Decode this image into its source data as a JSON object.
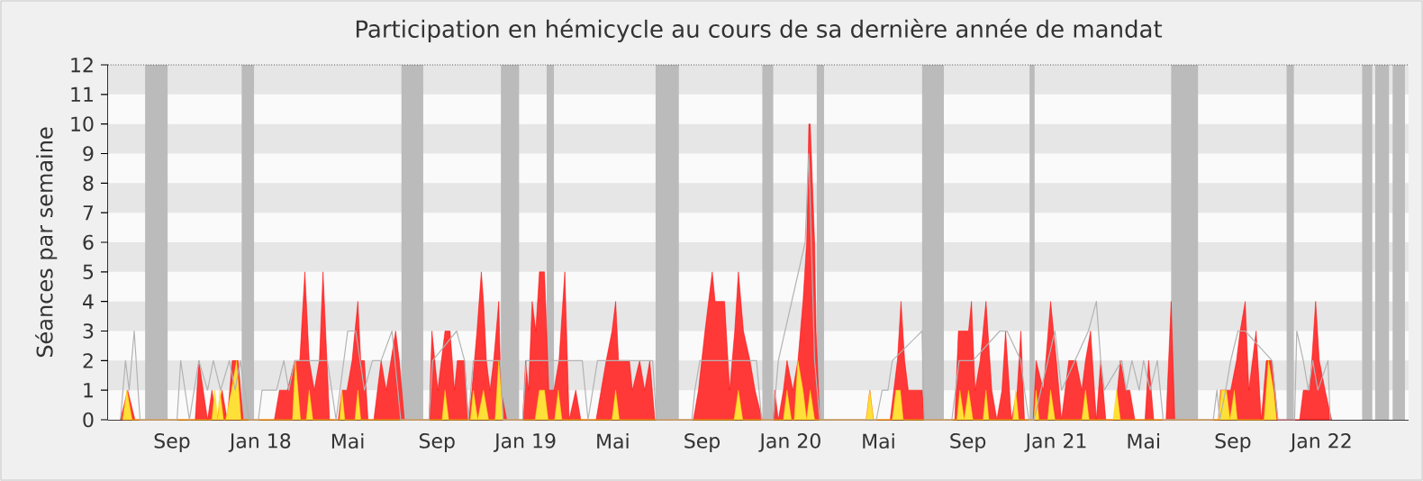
{
  "chart_data": {
    "type": "area",
    "title": "Participation en hémicycle au cours de sa dernière année de mandat",
    "ylabel": "Séances par semaine",
    "xlim": [
      "2017-06-05",
      "2022-05-01"
    ],
    "xticks": [
      {
        "value": "2017-09-01",
        "label": "Sep"
      },
      {
        "value": "2018-01-01",
        "label": "Jan 18"
      },
      {
        "value": "2018-05-01",
        "label": "Mai"
      },
      {
        "value": "2018-09-01",
        "label": "Sep"
      },
      {
        "value": "2019-01-01",
        "label": "Jan 19"
      },
      {
        "value": "2019-05-01",
        "label": "Mai"
      },
      {
        "value": "2019-09-01",
        "label": "Sep"
      },
      {
        "value": "2020-01-01",
        "label": "Jan 20"
      },
      {
        "value": "2020-05-01",
        "label": "Mai"
      },
      {
        "value": "2020-09-01",
        "label": "Sep"
      },
      {
        "value": "2021-01-01",
        "label": "Jan 21"
      },
      {
        "value": "2021-05-01",
        "label": "Mai"
      },
      {
        "value": "2021-09-01",
        "label": "Sep"
      },
      {
        "value": "2022-01-01",
        "label": "Jan 22"
      }
    ],
    "ylim": [
      0,
      12
    ],
    "yticks": [
      0,
      1,
      2,
      3,
      4,
      5,
      6,
      7,
      8,
      9,
      10,
      11,
      12
    ],
    "bands": [
      {
        "axis": "y",
        "from": 1,
        "to": 2,
        "color": "#e6e6e6"
      },
      {
        "axis": "y",
        "from": 3,
        "to": 4,
        "color": "#e6e6e6"
      },
      {
        "axis": "y",
        "from": 5,
        "to": 6,
        "color": "#e6e6e6"
      },
      {
        "axis": "y",
        "from": 7,
        "to": 8,
        "color": "#e6e6e6"
      },
      {
        "axis": "y",
        "from": 9,
        "to": 10,
        "color": "#e6e6e6"
      },
      {
        "axis": "y",
        "from": 11,
        "to": 12,
        "color": "#e6e6e6"
      },
      {
        "axis": "x",
        "from": "2017-07-26",
        "to": "2017-08-26",
        "color": "#bbbbbb"
      },
      {
        "axis": "x",
        "from": "2017-12-06",
        "to": "2017-12-23",
        "color": "#bbbbbb"
      },
      {
        "axis": "x",
        "from": "2018-07-14",
        "to": "2018-08-13",
        "color": "#bbbbbb"
      },
      {
        "axis": "x",
        "from": "2018-11-28",
        "to": "2018-12-23",
        "color": "#bbbbbb"
      },
      {
        "axis": "x",
        "from": "2019-01-30",
        "to": "2019-02-09",
        "color": "#bbbbbb"
      },
      {
        "axis": "x",
        "from": "2019-06-29",
        "to": "2019-07-31",
        "color": "#bbbbbb"
      },
      {
        "axis": "x",
        "from": "2019-11-23",
        "to": "2019-12-08",
        "color": "#bbbbbb"
      },
      {
        "axis": "x",
        "from": "2020-02-06",
        "to": "2020-02-16",
        "color": "#bbbbbb"
      },
      {
        "axis": "x",
        "from": "2020-06-30",
        "to": "2020-07-30",
        "color": "#bbbbbb"
      },
      {
        "axis": "x",
        "from": "2020-11-25",
        "to": "2020-12-02",
        "color": "#bbbbbb"
      },
      {
        "axis": "x",
        "from": "2021-06-08",
        "to": "2021-07-15",
        "color": "#bbbbbb"
      },
      {
        "axis": "x",
        "from": "2021-11-14",
        "to": "2021-11-24",
        "color": "#bbbbbb"
      },
      {
        "axis": "x",
        "from": "2022-02-26",
        "to": "2022-03-12",
        "color": "#bbbbbb"
      },
      {
        "axis": "x",
        "from": "2022-03-16",
        "to": "2022-04-04",
        "color": "#bbbbbb"
      },
      {
        "axis": "x",
        "from": "2022-04-09",
        "to": "2022-04-26",
        "color": "#bbbbbb"
      }
    ],
    "series": [
      {
        "color": "#ff0000",
        "x": [
          "2017-06-22",
          "2017-07-02",
          "2017-07-12",
          "2017-10-03",
          "2017-10-08",
          "2017-10-20",
          "2017-10-26",
          "2017-11-02",
          "2017-11-09",
          "2017-11-16",
          "2017-11-23",
          "2017-12-01",
          "2017-12-08",
          "2018-01-20",
          "2018-01-27",
          "2018-02-07",
          "2018-02-17",
          "2018-02-24",
          "2018-03-03",
          "2018-03-09",
          "2018-03-16",
          "2018-03-23",
          "2018-03-28",
          "2018-04-06",
          "2018-04-18",
          "2018-04-23",
          "2018-04-30",
          "2018-05-07",
          "2018-05-15",
          "2018-05-19",
          "2018-05-24",
          "2018-05-29",
          "2018-06-06",
          "2018-06-16",
          "2018-06-23",
          "2018-07-06",
          "2018-07-11",
          "2018-07-18",
          "2018-08-21",
          "2018-08-25",
          "2018-09-02",
          "2018-09-12",
          "2018-09-19",
          "2018-09-25",
          "2018-09-29",
          "2018-10-09",
          "2018-10-14",
          "2018-10-19",
          "2018-10-26",
          "2018-11-01",
          "2018-11-04",
          "2018-11-08",
          "2018-11-13",
          "2018-11-18",
          "2018-11-25",
          "2018-11-28",
          "2018-12-06",
          "2018-12-28",
          "2019-01-01",
          "2019-01-05",
          "2019-01-10",
          "2019-01-15",
          "2019-01-20",
          "2019-01-27",
          "2019-02-02",
          "2019-02-09",
          "2019-02-16",
          "2019-02-24",
          "2019-03-02",
          "2019-03-11",
          "2019-03-18",
          "2019-04-08",
          "2019-04-15",
          "2019-04-22",
          "2019-04-30",
          "2019-05-05",
          "2019-05-09",
          "2019-05-24",
          "2019-05-28",
          "2019-06-07",
          "2019-06-14",
          "2019-06-21",
          "2019-06-28",
          "2019-08-20",
          "2019-08-27",
          "2019-09-05",
          "2019-09-15",
          "2019-09-19",
          "2019-10-02",
          "2019-10-09",
          "2019-10-16",
          "2019-10-21",
          "2019-10-28",
          "2019-11-06",
          "2019-11-13",
          "2019-11-23",
          "2019-12-08",
          "2019-12-10",
          "2019-12-15",
          "2019-12-22",
          "2019-12-27",
          "2020-01-04",
          "2020-01-11",
          "2020-01-18",
          "2020-01-23",
          "2020-01-26",
          "2020-01-28",
          "2020-02-03",
          "2020-02-05",
          "2020-02-10",
          "2020-04-14",
          "2020-04-19",
          "2020-04-24",
          "2020-05-17",
          "2020-05-22",
          "2020-05-27",
          "2020-06-01",
          "2020-06-06",
          "2020-06-11",
          "2020-06-30",
          "2020-07-03",
          "2020-08-14",
          "2020-08-19",
          "2020-09-02",
          "2020-09-06",
          "2020-09-11",
          "2020-09-18",
          "2020-09-26",
          "2020-10-04",
          "2020-10-11",
          "2020-10-18",
          "2020-10-23",
          "2020-10-31",
          "2020-11-08",
          "2020-11-13",
          "2020-11-18",
          "2020-11-30",
          "2020-12-04",
          "2020-12-14",
          "2020-12-24",
          "2021-01-01",
          "2021-01-08",
          "2021-01-18",
          "2021-01-28",
          "2021-02-05",
          "2021-02-10",
          "2021-02-17",
          "2021-02-25",
          "2021-03-03",
          "2021-03-10",
          "2021-03-22",
          "2021-03-30",
          "2021-04-07",
          "2021-04-12",
          "2021-04-19",
          "2021-05-03",
          "2021-05-08",
          "2021-05-15",
          "2021-06-01",
          "2021-06-08",
          "2021-06-13",
          "2021-08-12",
          "2021-08-15",
          "2021-08-29",
          "2021-09-06",
          "2021-09-11",
          "2021-09-18",
          "2021-09-23",
          "2021-09-28",
          "2021-10-03",
          "2021-10-10",
          "2021-10-17",
          "2021-10-25",
          "2021-11-02",
          "2021-12-02",
          "2021-12-07",
          "2021-12-16",
          "2021-12-24",
          "2021-12-29",
          "2022-01-06",
          "2022-01-15"
        ],
        "values": [
          0,
          1,
          0,
          0,
          2,
          0,
          1,
          0,
          1,
          0,
          2,
          2,
          0,
          0,
          1,
          1,
          2,
          2,
          5,
          2,
          1,
          2,
          5,
          0,
          0,
          1,
          1,
          2,
          4,
          2,
          2,
          0,
          0,
          2,
          1,
          3,
          2,
          0,
          0,
          3,
          1,
          3,
          3,
          1,
          2,
          2,
          0,
          1,
          3,
          5,
          4,
          2,
          1,
          2,
          4,
          1,
          0,
          0,
          2,
          1,
          4,
          3,
          5,
          5,
          1,
          1,
          2,
          5,
          0,
          1,
          0,
          0,
          1,
          2,
          3,
          4,
          2,
          2,
          1,
          2,
          1,
          2,
          0,
          0,
          1,
          3,
          5,
          4,
          4,
          1,
          3,
          5,
          3,
          2,
          1,
          0,
          0,
          1,
          0,
          1,
          2,
          1,
          2,
          4,
          6,
          10,
          10,
          6,
          3,
          0,
          0,
          1,
          0,
          0,
          1,
          2,
          4,
          2,
          1,
          1,
          0,
          0,
          3,
          3,
          4,
          1,
          2,
          4,
          1,
          0,
          1,
          3,
          0,
          1,
          3,
          0,
          0,
          2,
          1,
          4,
          2,
          0,
          2,
          2,
          1,
          2,
          3,
          0,
          2,
          0,
          0,
          2,
          1,
          1,
          0,
          0,
          2,
          0,
          0,
          4,
          0,
          0,
          1,
          1,
          2,
          3,
          4,
          1,
          2,
          3,
          0,
          2,
          2,
          0,
          0,
          1,
          1,
          4,
          2,
          1,
          0
        ]
      },
      {
        "color": "#ffd700",
        "x": [
          "2017-06-25",
          "2017-07-01",
          "2017-07-08",
          "2017-10-26",
          "2017-10-30",
          "2017-11-03",
          "2017-11-06",
          "2017-11-11",
          "2017-11-14",
          "2017-11-22",
          "2017-11-29",
          "2017-12-05",
          "2018-02-14",
          "2018-02-18",
          "2018-02-25",
          "2018-03-05",
          "2018-03-09",
          "2018-03-14",
          "2018-04-20",
          "2018-04-23",
          "2018-04-27",
          "2018-05-11",
          "2018-05-15",
          "2018-05-19",
          "2018-09-08",
          "2018-09-12",
          "2018-09-17",
          "2018-10-17",
          "2018-10-21",
          "2018-10-27",
          "2018-11-04",
          "2018-11-11",
          "2018-11-20",
          "2018-11-25",
          "2018-12-01",
          "2019-01-14",
          "2019-01-20",
          "2019-01-27",
          "2019-02-01",
          "2019-02-10",
          "2019-02-15",
          "2019-02-20",
          "2019-04-30",
          "2019-05-05",
          "2019-05-10",
          "2019-10-15",
          "2019-10-21",
          "2019-10-27",
          "2019-12-22",
          "2019-12-27",
          "2020-01-02",
          "2020-01-06",
          "2020-01-11",
          "2020-01-18",
          "2020-01-23",
          "2020-01-28",
          "2020-02-03",
          "2020-04-14",
          "2020-04-19",
          "2020-04-24",
          "2020-05-20",
          "2020-05-25",
          "2020-05-31",
          "2020-06-04",
          "2020-08-17",
          "2020-08-21",
          "2020-08-27",
          "2020-09-02",
          "2020-09-08",
          "2020-09-22",
          "2020-09-26",
          "2020-09-30",
          "2020-11-02",
          "2020-11-06",
          "2020-11-10",
          "2020-12-01",
          "2020-12-04",
          "2020-12-08",
          "2020-12-20",
          "2020-12-24",
          "2020-12-30",
          "2021-02-05",
          "2021-02-10",
          "2021-02-15",
          "2021-03-20",
          "2021-03-25",
          "2021-03-30",
          "2021-08-12",
          "2021-08-16",
          "2021-08-23",
          "2021-08-28",
          "2021-09-03",
          "2021-09-07",
          "2021-10-14",
          "2021-10-20",
          "2021-10-27",
          "2021-10-31"
        ],
        "values": [
          0,
          1,
          0,
          0,
          1,
          0,
          1,
          0,
          0,
          1,
          2,
          0,
          0,
          2,
          0,
          0,
          1,
          0,
          0,
          1,
          0,
          0,
          1,
          0,
          0,
          1,
          0,
          0,
          1,
          0,
          1,
          0,
          0,
          2,
          0,
          0,
          1,
          1,
          0,
          0,
          1,
          0,
          0,
          1,
          0,
          0,
          1,
          0,
          0,
          1,
          0,
          0,
          2,
          1,
          0,
          1,
          0,
          0,
          1,
          0,
          0,
          1,
          1,
          0,
          0,
          1,
          0,
          1,
          0,
          0,
          1,
          0,
          0,
          1,
          0,
          0,
          1,
          0,
          0,
          1,
          0,
          0,
          1,
          0,
          0,
          1,
          0,
          0,
          1,
          1,
          0,
          1,
          0,
          0,
          2,
          1,
          0
        ]
      },
      {
        "type": "line",
        "color": "#b3b3b3",
        "x": [
          "2017-06-22",
          "2017-06-29",
          "2017-07-04",
          "2017-07-11",
          "2017-07-19",
          "2017-09-08",
          "2017-09-13",
          "2017-09-25",
          "2017-10-08",
          "2017-10-20",
          "2017-10-28",
          "2017-11-07",
          "2017-11-19",
          "2017-11-27",
          "2017-12-04",
          "2017-12-16",
          "2017-12-29",
          "2018-01-03",
          "2018-01-23",
          "2018-02-02",
          "2018-02-09",
          "2018-02-17",
          "2018-03-16",
          "2018-04-03",
          "2018-04-15",
          "2018-05-01",
          "2018-05-12",
          "2018-05-24",
          "2018-06-04",
          "2018-06-16",
          "2018-07-01",
          "2018-07-13",
          "2018-08-21",
          "2018-08-26",
          "2018-09-28",
          "2018-10-09",
          "2018-10-14",
          "2018-10-21",
          "2018-11-27",
          "2018-12-01",
          "2018-12-28",
          "2019-01-02",
          "2019-03-10",
          "2019-03-20",
          "2019-03-28",
          "2019-04-10",
          "2019-06-25",
          "2019-06-30",
          "2019-08-18",
          "2019-08-22",
          "2019-08-29",
          "2019-11-15",
          "2019-11-22",
          "2019-12-08",
          "2019-12-15",
          "2020-01-21",
          "2020-01-26",
          "2020-02-03",
          "2020-02-10",
          "2020-04-28",
          "2020-05-06",
          "2020-05-14",
          "2020-05-20",
          "2020-06-30",
          "2020-07-03",
          "2020-08-10",
          "2020-08-20",
          "2020-09-08",
          "2020-10-15",
          "2020-10-25",
          "2020-11-13",
          "2020-11-18",
          "2020-11-24",
          "2020-12-01",
          "2020-12-30",
          "2021-01-08",
          "2021-02-14",
          "2021-02-25",
          "2021-03-03",
          "2021-03-08",
          "2021-04-01",
          "2021-04-07",
          "2021-04-15",
          "2021-04-25",
          "2021-05-01",
          "2021-05-10",
          "2021-05-20",
          "2021-05-28",
          "2021-08-05",
          "2021-08-10",
          "2021-08-14",
          "2021-08-22",
          "2021-08-29",
          "2021-09-08",
          "2021-09-18",
          "2021-10-25",
          "2021-11-02",
          "2021-11-25",
          "2021-11-28",
          "2021-12-07",
          "2021-12-14",
          "2021-12-20",
          "2021-12-27",
          "2022-01-10",
          "2022-01-13"
        ],
        "values": [
          0,
          2,
          1,
          3,
          0,
          0,
          2,
          0,
          2,
          1,
          2,
          1,
          2,
          1,
          2,
          0,
          0,
          1,
          1,
          2,
          1,
          2,
          2,
          2,
          0,
          3,
          3,
          1,
          2,
          2,
          3,
          0,
          0,
          2,
          3,
          2,
          0,
          2,
          2,
          0,
          0,
          2,
          2,
          2,
          0,
          2,
          2,
          0,
          0,
          1,
          2,
          2,
          0,
          0,
          2,
          6,
          9,
          2,
          0,
          0,
          1,
          1,
          2,
          3,
          0,
          0,
          2,
          2,
          3,
          3,
          2,
          1,
          0,
          0,
          3,
          1,
          3,
          4,
          2,
          1,
          2,
          1,
          2,
          1,
          2,
          1,
          2,
          0,
          0,
          1,
          0,
          1,
          2,
          3,
          3,
          2,
          0,
          0,
          3,
          2,
          1,
          2,
          1,
          2,
          0
        ]
      }
    ]
  }
}
